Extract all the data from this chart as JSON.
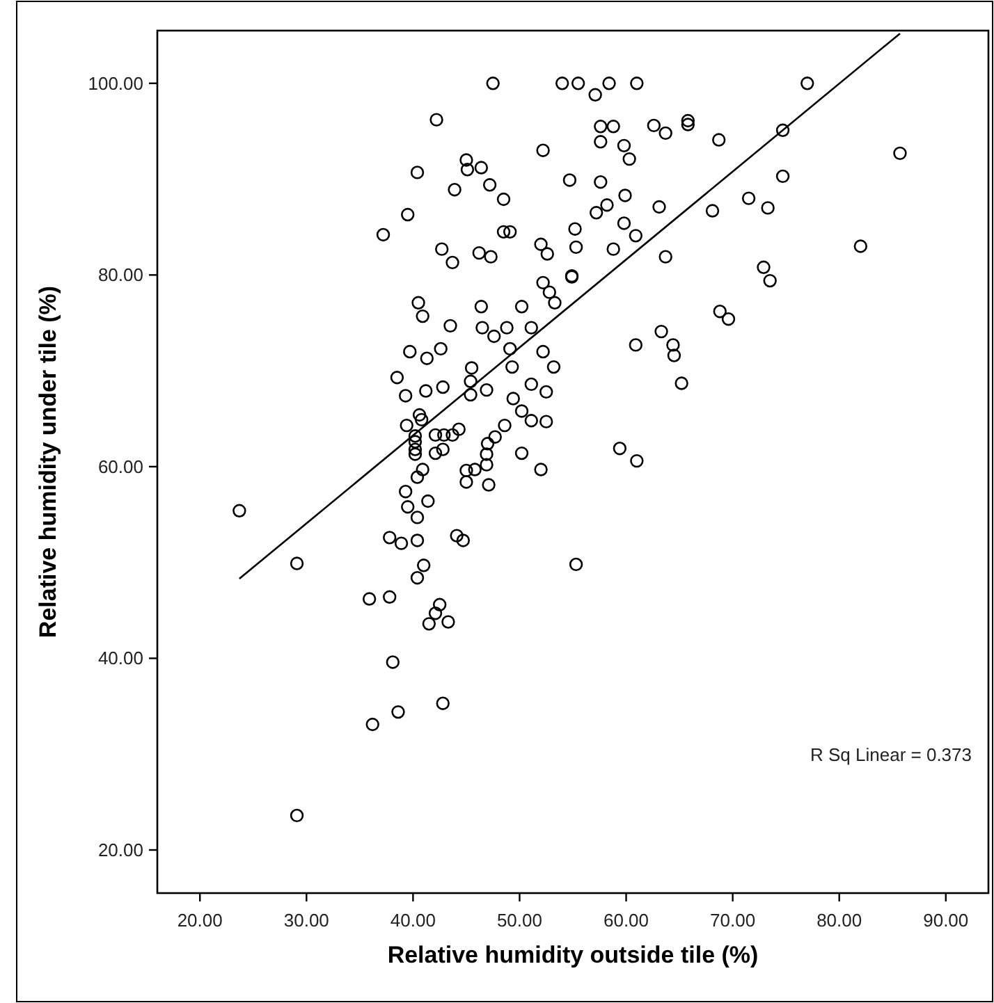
{
  "chart_data": {
    "type": "scatter",
    "xlabel": "Relative humidity outside tile (%)",
    "ylabel": "Relative humidity under tile (%)",
    "xlim": [
      16,
      94
    ],
    "ylim": [
      15.5,
      105.5
    ],
    "xticks": [
      {
        "value": 20,
        "label": "20.00"
      },
      {
        "value": 30,
        "label": "30.00"
      },
      {
        "value": 40,
        "label": "40.00"
      },
      {
        "value": 50,
        "label": "50.00"
      },
      {
        "value": 60,
        "label": "60.00"
      },
      {
        "value": 70,
        "label": "70.00"
      },
      {
        "value": 80,
        "label": "80.00"
      },
      {
        "value": 90,
        "label": "90.00"
      }
    ],
    "yticks": [
      {
        "value": 20,
        "label": "20.00"
      },
      {
        "value": 40,
        "label": "40.00"
      },
      {
        "value": 60,
        "label": "60.00"
      },
      {
        "value": 80,
        "label": "80.00"
      },
      {
        "value": 100,
        "label": "100.00"
      }
    ],
    "grid": false,
    "marker": "circle",
    "annotations": [
      "R Sq Linear = 0.373"
    ],
    "series": [
      {
        "color": "#000000",
        "x": [
          47.5,
          54.0,
          42.2,
          52.2,
          45.0,
          45.1,
          46.4,
          40.4,
          47.2,
          43.9,
          48.5,
          54.7,
          39.5,
          37.2,
          48.5,
          49.1,
          42.7,
          43.7,
          46.2,
          47.3,
          52.0,
          52.6,
          55.2,
          55.3,
          54.9,
          54.9,
          52.2,
          52.8,
          53.3,
          40.5,
          40.9,
          46.4,
          50.2,
          43.5,
          46.5,
          47.6,
          48.8,
          51.1,
          49.1,
          39.7,
          41.3,
          42.6,
          52.2,
          53.2,
          49.3,
          45.5,
          38.5,
          45.4,
          39.3,
          41.2,
          42.8,
          45.4,
          46.9,
          51.1,
          52.5,
          49.4,
          50.2,
          51.1,
          52.5,
          40.6,
          40.8,
          39.4,
          44.3,
          43.7,
          42.9,
          42.1,
          40.2,
          40.2,
          40.2,
          40.2,
          48.6,
          47.7,
          47.0,
          46.9,
          50.2,
          42.1,
          42.8,
          46.9,
          40.9,
          40.4,
          45.0,
          45.8,
          52.0,
          45.0,
          47.1,
          39.3,
          23.7,
          29.1,
          39.5,
          41.4,
          40.4,
          37.8,
          38.9,
          40.4,
          44.1,
          44.7,
          41.0,
          40.4,
          35.9,
          37.8,
          42.5,
          42.1,
          41.5,
          43.3,
          38.1,
          38.6,
          36.2,
          42.8,
          29.1,
          55.5,
          58.4,
          61.0,
          57.1,
          77.0,
          57.6,
          58.8,
          57.6,
          62.6,
          63.7,
          65.8,
          65.8,
          68.7,
          74.7,
          59.8,
          60.3,
          85.7,
          57.6,
          59.9,
          58.2,
          57.2,
          63.1,
          74.7,
          71.5,
          73.3,
          68.1,
          59.8,
          60.9,
          58.8,
          63.7,
          82.0,
          72.9,
          73.5,
          68.8,
          69.6,
          60.9,
          63.3,
          64.4,
          64.5,
          65.2,
          59.4,
          61.0,
          55.3
        ],
        "values": [
          100,
          100,
          96.2,
          93.0,
          92.0,
          91.0,
          91.2,
          90.7,
          89.4,
          88.9,
          87.9,
          89.9,
          86.3,
          84.2,
          84.5,
          84.5,
          82.7,
          81.3,
          82.3,
          81.9,
          83.2,
          82.2,
          84.8,
          82.9,
          79.9,
          79.8,
          79.2,
          78.2,
          77.1,
          77.1,
          75.7,
          76.7,
          76.7,
          74.7,
          74.5,
          73.6,
          74.5,
          74.5,
          72.3,
          72.0,
          71.3,
          72.3,
          72.0,
          70.4,
          70.4,
          70.3,
          69.3,
          68.9,
          67.4,
          67.9,
          68.3,
          67.5,
          68.0,
          68.6,
          67.8,
          67.1,
          65.8,
          64.8,
          64.7,
          65.4,
          64.9,
          64.3,
          63.9,
          63.3,
          63.3,
          63.3,
          63.2,
          62.6,
          61.8,
          61.3,
          64.3,
          63.1,
          62.4,
          61.3,
          61.4,
          61.4,
          61.8,
          60.2,
          59.7,
          58.9,
          59.6,
          59.7,
          59.7,
          58.4,
          58.1,
          57.4,
          55.4,
          49.9,
          55.8,
          56.4,
          54.7,
          52.6,
          52.0,
          52.3,
          52.8,
          52.3,
          49.7,
          48.4,
          46.2,
          46.4,
          45.6,
          44.7,
          43.6,
          43.8,
          39.6,
          34.4,
          33.1,
          35.3,
          23.6,
          100,
          100,
          100,
          98.8,
          100,
          95.5,
          95.5,
          93.9,
          95.6,
          94.8,
          96.1,
          95.7,
          94.1,
          95.1,
          93.5,
          92.1,
          92.7,
          89.7,
          88.3,
          87.3,
          86.5,
          87.1,
          90.3,
          88.0,
          87.0,
          86.7,
          85.4,
          84.1,
          82.7,
          81.9,
          83.0,
          80.8,
          79.4,
          76.2,
          75.4,
          72.7,
          74.1,
          72.7,
          71.6,
          68.7,
          61.9,
          60.6,
          49.8
        ]
      },
      {
        "type": "line",
        "color": "#000000",
        "marker": "none",
        "line_style": "solid",
        "x": [
          23.7,
          85.7
        ],
        "values": [
          48.3,
          105.2
        ]
      }
    ]
  }
}
